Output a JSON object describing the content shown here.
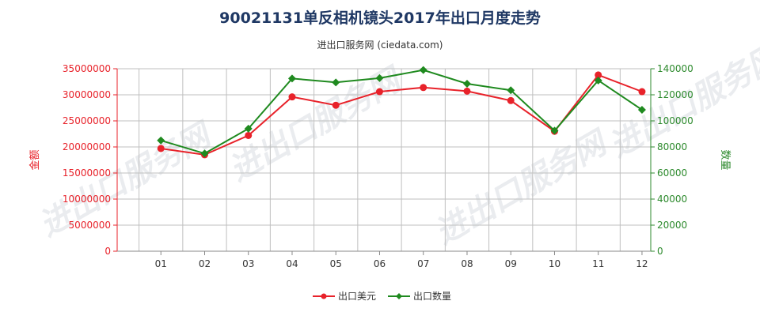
{
  "header": {
    "title": "90021131单反相机镜头2017年出口月度走势",
    "subtitle": "进出口服务网 (ciedata.com)"
  },
  "watermark": "进出口服务网",
  "colors": {
    "series1": "#e8222a",
    "series2": "#1f8a1f",
    "grid": "#bfbfbf",
    "axis_left": "#e8222a",
    "axis_right": "#2d8a2d"
  },
  "chart_data": {
    "type": "line",
    "title": "90021131单反相机镜头2017年出口月度走势",
    "subtitle": "进出口服务网 (ciedata.com)",
    "x": [
      "01",
      "02",
      "03",
      "04",
      "05",
      "06",
      "07",
      "08",
      "09",
      "10",
      "11",
      "12"
    ],
    "y_left": {
      "label": "金额",
      "lim": [
        0,
        35000000
      ],
      "ticks": [
        "0",
        "5000000",
        "10000000",
        "15000000",
        "20000000",
        "25000000",
        "30000000",
        "35000000"
      ]
    },
    "y_right": {
      "label": "数量",
      "lim": [
        0,
        140000
      ],
      "ticks": [
        "0",
        "20000",
        "40000",
        "60000",
        "80000",
        "100000",
        "120000",
        "140000"
      ]
    },
    "series": [
      {
        "name": "出口美元",
        "axis": "left",
        "color": "#e8222a",
        "marker": "circle",
        "values": [
          19700000,
          18500000,
          22200000,
          29600000,
          28000000,
          30600000,
          31400000,
          30700000,
          28900000,
          23000000,
          33800000,
          30600000
        ]
      },
      {
        "name": "出口数量",
        "axis": "right",
        "color": "#1f8a1f",
        "marker": "diamond",
        "values": [
          85000,
          75000,
          94000,
          132500,
          129500,
          132800,
          139000,
          128500,
          123500,
          92500,
          131000,
          108500
        ]
      }
    ],
    "grid": true,
    "legend_position": "bottom-center"
  }
}
